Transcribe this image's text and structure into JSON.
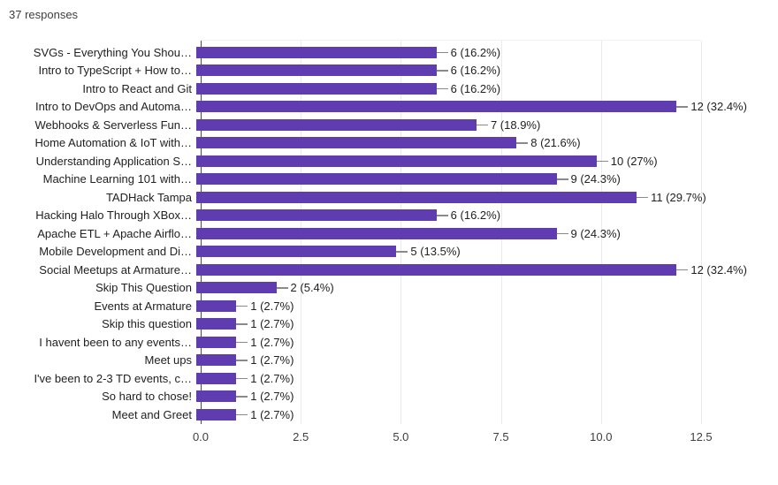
{
  "header": {
    "responses_count": "37 responses"
  },
  "colors": {
    "bar": "#5f3cb0",
    "gridline": "#ebebeb",
    "axis_line": "#4a4a4a",
    "text": "#212121",
    "connector": "#8a8a8a"
  },
  "chart_data": {
    "type": "bar",
    "orientation": "horizontal",
    "title": "",
    "xlabel": "",
    "ylabel": "",
    "xlim": [
      0,
      12.5
    ],
    "x_ticks": [
      "0.0",
      "2.5",
      "5.0",
      "7.5",
      "10.0",
      "12.5"
    ],
    "grid": true,
    "legend": "none",
    "categories": [
      "SVGs - Everything You Shou…",
      "Intro to TypeScript + How to…",
      "Intro to React and Git",
      "Intro to DevOps and Automa…",
      "Webhooks & Serverless Fun…",
      "Home Automation & IoT with…",
      "Understanding Application S…",
      "Machine Learning 101 with…",
      "TADHack Tampa",
      "Hacking Halo Through XBox…",
      "Apache ETL + Apache Airflo…",
      "Mobile Development and Di…",
      "Social Meetups at Armature…",
      "Skip This Question",
      "Events at Armature",
      "Skip this question",
      "I havent been to any events…",
      "Meet ups",
      "I've been to 2-3 TD events, c…",
      "So hard to chose!",
      "Meet and Greet"
    ],
    "values": [
      6,
      6,
      6,
      12,
      7,
      8,
      10,
      9,
      11,
      6,
      9,
      5,
      12,
      2,
      1,
      1,
      1,
      1,
      1,
      1,
      1
    ],
    "value_labels": [
      "6 (16.2%)",
      "6 (16.2%)",
      "6 (16.2%)",
      "12 (32.4%)",
      "7 (18.9%)",
      "8 (21.6%)",
      "10 (27%)",
      "9 (24.3%)",
      "11 (29.7%)",
      "6 (16.2%)",
      "9 (24.3%)",
      "5 (13.5%)",
      "12 (32.4%)",
      "2 (5.4%)",
      "1 (2.7%)",
      "1 (2.7%)",
      "1 (2.7%)",
      "1 (2.7%)",
      "1 (2.7%)",
      "1 (2.7%)",
      "1 (2.7%)"
    ]
  }
}
